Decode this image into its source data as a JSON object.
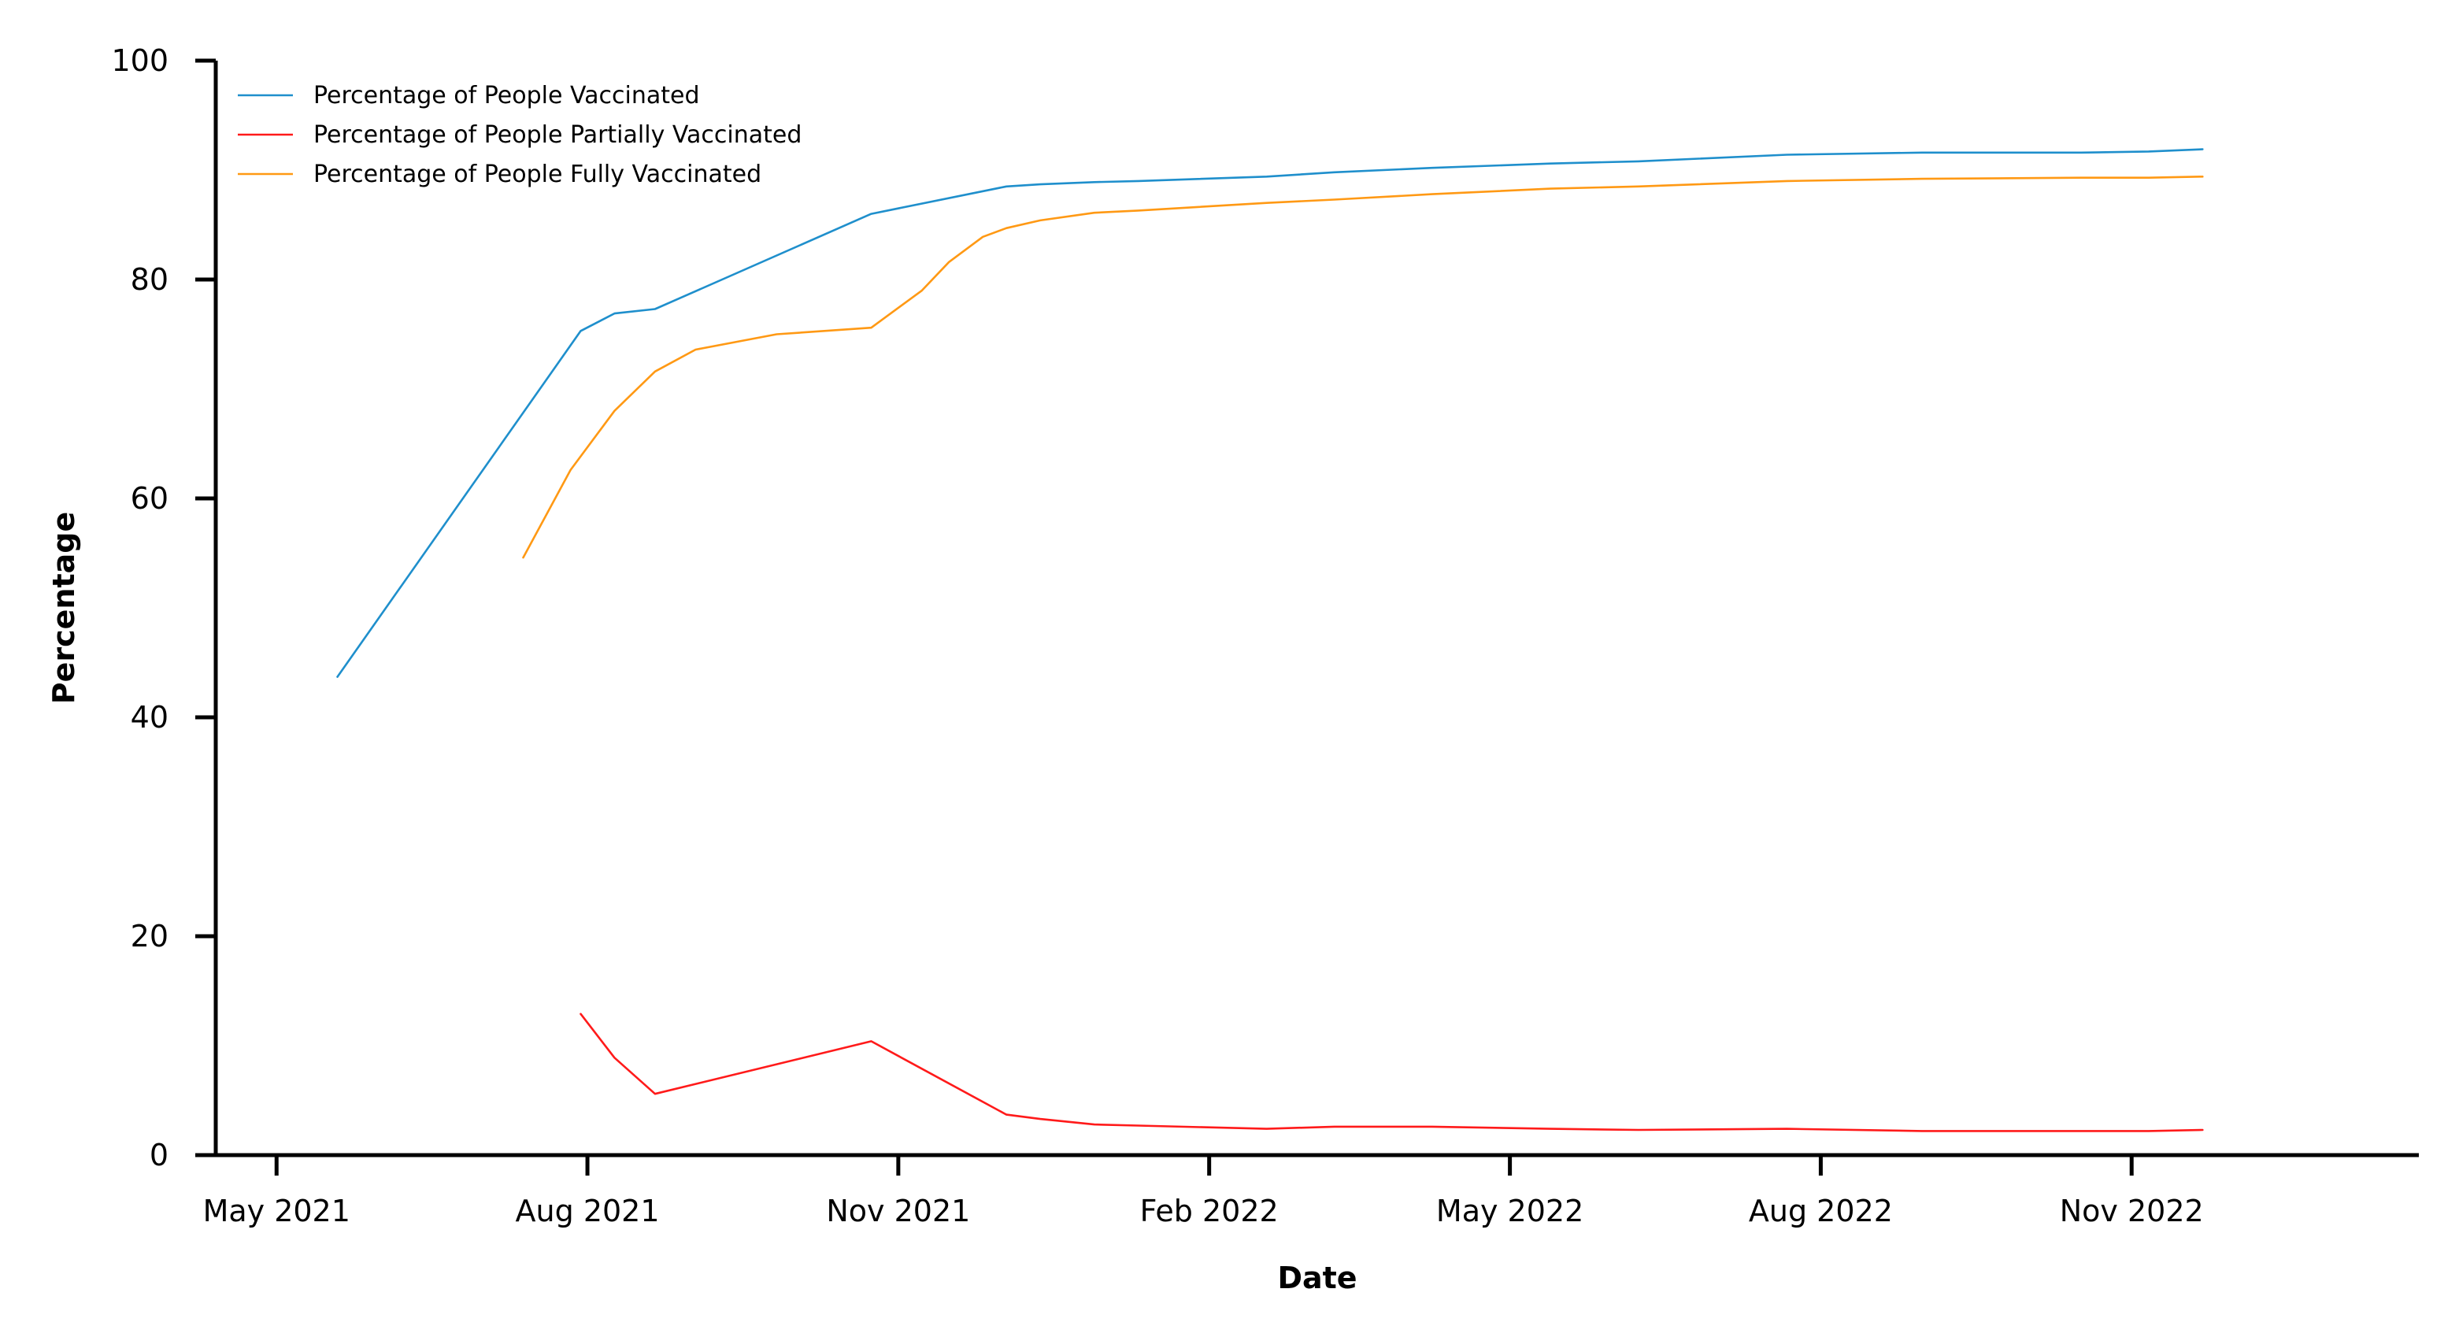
{
  "chart_data": {
    "type": "line",
    "title": "",
    "xlabel": "Date",
    "ylabel": "Percentage",
    "ylim": [
      0,
      100
    ],
    "xlim": [
      "2021-04-13",
      "2023-01-25"
    ],
    "grid": false,
    "legend_position": "top-left",
    "x_ticks": [
      {
        "date": "2021-05-01",
        "label": "May 2021"
      },
      {
        "date": "2021-08-01",
        "label": "Aug 2021"
      },
      {
        "date": "2021-11-01",
        "label": "Nov 2021"
      },
      {
        "date": "2022-02-01",
        "label": "Feb 2022"
      },
      {
        "date": "2022-05-01",
        "label": "May 2022"
      },
      {
        "date": "2022-08-01",
        "label": "Aug 2022"
      },
      {
        "date": "2022-11-01",
        "label": "Nov 2022"
      }
    ],
    "y_ticks": [
      {
        "value": 0,
        "label": "0"
      },
      {
        "value": 20,
        "label": "20"
      },
      {
        "value": 40,
        "label": "40"
      },
      {
        "value": 60,
        "label": "60"
      },
      {
        "value": 80,
        "label": "80"
      },
      {
        "value": 100,
        "label": "100"
      }
    ],
    "series": [
      {
        "name": "Percentage of People Vaccinated",
        "color": "#1f8fcc",
        "points": [
          [
            "2021-05-19",
            43.7
          ],
          [
            "2021-07-30",
            75.3
          ],
          [
            "2021-08-09",
            76.9
          ],
          [
            "2021-08-21",
            77.3
          ],
          [
            "2021-10-24",
            86.0
          ],
          [
            "2021-12-03",
            88.5
          ],
          [
            "2021-12-13",
            88.7
          ],
          [
            "2021-12-29",
            88.9
          ],
          [
            "2022-01-11",
            89.0
          ],
          [
            "2022-02-18",
            89.4
          ],
          [
            "2022-03-10",
            89.8
          ],
          [
            "2022-04-08",
            90.2
          ],
          [
            "2022-05-13",
            90.6
          ],
          [
            "2022-06-08",
            90.8
          ],
          [
            "2022-07-22",
            91.4
          ],
          [
            "2022-08-31",
            91.6
          ],
          [
            "2022-10-17",
            91.6
          ],
          [
            "2022-11-06",
            91.7
          ],
          [
            "2022-11-22",
            91.9
          ]
        ]
      },
      {
        "name": "Percentage of People Partially Vaccinated",
        "color": "#ff1a1a",
        "points": [
          [
            "2021-07-30",
            12.9
          ],
          [
            "2021-08-09",
            8.9
          ],
          [
            "2021-08-21",
            5.6
          ],
          [
            "2021-10-24",
            10.4
          ],
          [
            "2021-12-03",
            3.7
          ],
          [
            "2021-12-13",
            3.3
          ],
          [
            "2021-12-29",
            2.8
          ],
          [
            "2022-01-11",
            2.7
          ],
          [
            "2022-02-18",
            2.4
          ],
          [
            "2022-03-10",
            2.6
          ],
          [
            "2022-04-08",
            2.6
          ],
          [
            "2022-05-13",
            2.4
          ],
          [
            "2022-06-08",
            2.3
          ],
          [
            "2022-07-22",
            2.4
          ],
          [
            "2022-08-31",
            2.2
          ],
          [
            "2022-10-17",
            2.2
          ],
          [
            "2022-11-06",
            2.2
          ],
          [
            "2022-11-22",
            2.3
          ]
        ]
      },
      {
        "name": "Percentage of People Fully Vaccinated",
        "color": "#ff9914",
        "points": [
          [
            "2021-07-13",
            54.6
          ],
          [
            "2021-07-27",
            62.6
          ],
          [
            "2021-08-09",
            68.0
          ],
          [
            "2021-08-21",
            71.6
          ],
          [
            "2021-09-02",
            73.6
          ],
          [
            "2021-09-26",
            75.0
          ],
          [
            "2021-10-24",
            75.6
          ],
          [
            "2021-11-08",
            79.0
          ],
          [
            "2021-11-16",
            81.6
          ],
          [
            "2021-11-26",
            83.9
          ],
          [
            "2021-12-03",
            84.7
          ],
          [
            "2021-12-13",
            85.4
          ],
          [
            "2021-12-29",
            86.1
          ],
          [
            "2022-01-11",
            86.3
          ],
          [
            "2022-02-18",
            87.0
          ],
          [
            "2022-03-10",
            87.3
          ],
          [
            "2022-04-08",
            87.8
          ],
          [
            "2022-05-13",
            88.3
          ],
          [
            "2022-06-08",
            88.5
          ],
          [
            "2022-07-22",
            89.0
          ],
          [
            "2022-08-31",
            89.2
          ],
          [
            "2022-10-17",
            89.3
          ],
          [
            "2022-11-06",
            89.3
          ],
          [
            "2022-11-22",
            89.4
          ]
        ]
      }
    ]
  }
}
